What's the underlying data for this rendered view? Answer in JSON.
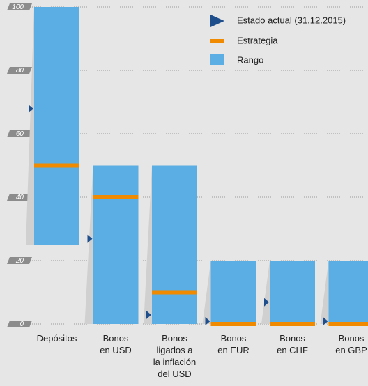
{
  "chart_data": {
    "type": "range",
    "categories": [
      "Depósitos",
      "Bonos\nen USD",
      "Bonos\nligados a\nla inflación\ndel USD",
      "Bonos\nen EUR",
      "Bonos\nen CHF",
      "Bonos\nen GBP"
    ],
    "series": [
      {
        "name": "Estado actual (31.12.2015)",
        "color": "#1f4e8c",
        "values": [
          67,
          26,
          2,
          0,
          6,
          0
        ]
      },
      {
        "name": "Estrategia",
        "color": "#f08a00",
        "values": [
          50,
          40,
          10,
          0,
          0,
          0
        ]
      },
      {
        "name": "Rango",
        "color": "#5aaee3",
        "low": [
          25,
          0,
          0,
          0,
          0,
          0
        ],
        "values": [
          100,
          50,
          50,
          20,
          20,
          20
        ]
      }
    ],
    "ylim": [
      0,
      100
    ],
    "yticks": [
      0,
      20,
      40,
      60,
      80,
      100
    ],
    "grid": true
  }
}
